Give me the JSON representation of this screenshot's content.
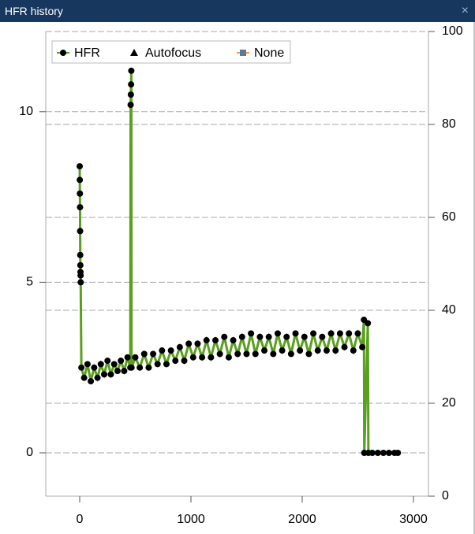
{
  "window_title": "HFR history",
  "chart_data": {
    "type": "line",
    "xlim": [
      -305,
      3135
    ],
    "xticks": [
      0,
      1000,
      2000,
      3000
    ],
    "ylim": [
      -1.27,
      12.35
    ],
    "yticks": [
      0,
      5,
      10
    ],
    "y2lim": [
      0,
      100
    ],
    "y2ticks": [
      0,
      20,
      40,
      60,
      80,
      100
    ],
    "grid": true,
    "legend": "top-left",
    "series": [
      {
        "name": "HFR",
        "color": "#5aa01e",
        "marker_color": "#000000",
        "marker": "circle",
        "x": [
          0,
          1,
          2,
          3,
          4,
          5,
          6,
          7,
          8,
          9,
          15,
          40,
          70,
          100,
          130,
          160,
          190,
          220,
          250,
          280,
          310,
          340,
          370,
          400,
          430,
          455,
          458,
          460,
          462,
          464,
          466,
          500,
          540,
          580,
          620,
          660,
          700,
          740,
          780,
          820,
          860,
          900,
          940,
          980,
          1020,
          1060,
          1100,
          1140,
          1180,
          1220,
          1260,
          1300,
          1340,
          1380,
          1420,
          1460,
          1500,
          1540,
          1580,
          1620,
          1660,
          1700,
          1740,
          1780,
          1820,
          1860,
          1900,
          1940,
          1980,
          2020,
          2060,
          2100,
          2140,
          2180,
          2220,
          2260,
          2300,
          2340,
          2380,
          2420,
          2460,
          2500,
          2540,
          2555,
          2558,
          2590,
          2595,
          2630,
          2680,
          2730,
          2780,
          2830,
          2860
        ],
        "values": [
          8.4,
          8.0,
          7.6,
          7.2,
          6.5,
          5.8,
          5.5,
          5.3,
          5.2,
          5.0,
          2.5,
          2.2,
          2.6,
          2.1,
          2.5,
          2.2,
          2.6,
          2.3,
          2.7,
          2.3,
          2.6,
          2.4,
          2.7,
          2.4,
          2.8,
          2.5,
          10.2,
          10.5,
          10.8,
          11.2,
          2.5,
          2.8,
          2.5,
          2.9,
          2.5,
          2.9,
          2.6,
          3.0,
          2.6,
          3.0,
          2.7,
          3.1,
          2.7,
          3.2,
          2.8,
          3.2,
          2.8,
          3.3,
          2.8,
          3.3,
          2.9,
          3.4,
          2.8,
          3.3,
          2.9,
          3.4,
          2.9,
          3.5,
          2.9,
          3.4,
          3.0,
          3.4,
          2.9,
          3.5,
          3.0,
          3.4,
          2.9,
          3.5,
          3.0,
          3.4,
          2.9,
          3.5,
          3.0,
          3.4,
          3.0,
          3.5,
          3.0,
          3.5,
          3.1,
          3.5,
          3.0,
          3.5,
          3.1,
          3.9,
          0,
          3.8,
          0,
          0,
          0,
          0,
          0,
          0,
          0
        ]
      },
      {
        "name": "Autofocus",
        "color": "#000000",
        "marker": "triangle",
        "x": [],
        "values": []
      },
      {
        "name": "None",
        "color": "#e8a040",
        "marker_color": "#5a7a9a",
        "marker": "square",
        "x": [],
        "values": []
      }
    ]
  }
}
